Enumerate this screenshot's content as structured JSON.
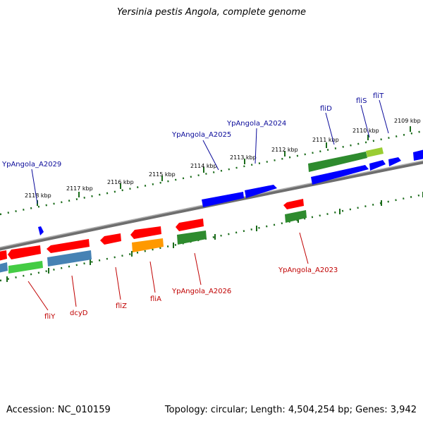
{
  "title": "Yersinia pestis Angola, complete genome",
  "footer": {
    "accession": "Accession: NC_010159",
    "summary": "Topology: circular; Length: 4,504,254 bp; Genes: 3,942"
  },
  "colors": {
    "backbone": "#808080",
    "forward_label": "#0a0a9a",
    "reverse_label": "#c00000",
    "tick_green": "#1a6b1a",
    "gene_blue": "#0000ff",
    "gene_red": "#ff0000",
    "gene_green": "#2e8b2e",
    "gene_steel": "#4682b4",
    "gene_orange": "#ff9900",
    "gene_lightgreen": "#44cc44",
    "gene_yellowgreen": "#9acd32"
  },
  "kbp_labels": [
    "2109 kbp",
    "2110 kbp",
    "2111 kbp",
    "2112 kbp",
    "2113 kbp",
    "2114 kbp",
    "2115 kbp",
    "2116 kbp",
    "2117 kbp",
    "2118 kbp"
  ],
  "forward_genes": [
    {
      "name": "YpAngola_A2029"
    },
    {
      "name": "YpAngola_A2025"
    },
    {
      "name": "YpAngola_A2024"
    },
    {
      "name": "fliD"
    },
    {
      "name": "fliS"
    },
    {
      "name": "fliT"
    }
  ],
  "reverse_genes": [
    {
      "name": "fliY"
    },
    {
      "name": "dcyD"
    },
    {
      "name": "fliZ"
    },
    {
      "name": "fliA"
    },
    {
      "name": "YpAngola_A2026"
    },
    {
      "name": "YpAngola_A2023"
    }
  ]
}
